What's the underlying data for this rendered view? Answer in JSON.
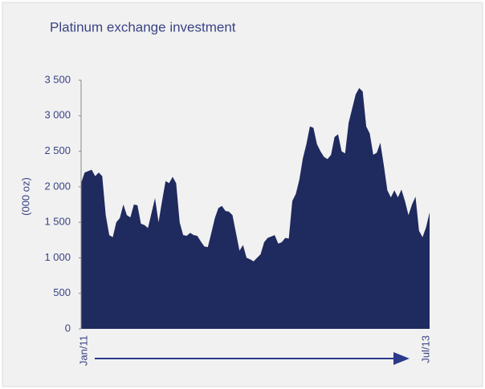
{
  "chart_data": {
    "type": "area",
    "title": "Platinum exchange investment",
    "ylabel": "(000 oz)",
    "color": "#1f2a5e",
    "categories": [
      "Jan/11",
      null,
      null,
      null,
      null,
      null,
      null,
      null,
      null,
      null,
      null,
      null,
      null,
      null,
      null,
      null,
      null,
      null,
      null,
      null,
      null,
      null,
      null,
      null,
      null,
      null,
      null,
      null,
      null,
      null,
      null,
      null,
      null,
      null,
      null,
      null,
      null,
      null,
      null,
      null,
      null,
      null,
      null,
      null,
      null,
      null,
      null,
      null,
      null,
      null,
      null,
      null,
      null,
      null,
      null,
      null,
      null,
      null,
      null,
      null,
      null,
      null,
      null,
      null,
      null,
      null,
      null,
      null,
      null,
      null,
      null,
      null,
      null,
      null,
      null,
      null,
      null,
      null,
      null,
      null,
      null,
      null,
      null,
      null,
      null,
      null,
      null,
      null,
      null,
      null,
      null,
      null,
      null,
      null,
      null,
      null,
      null,
      null,
      null,
      "Jul/13"
    ],
    "values": [
      2050,
      2200,
      2220,
      2240,
      2150,
      2200,
      2150,
      1600,
      1320,
      1290,
      1500,
      1560,
      1750,
      1600,
      1570,
      1750,
      1740,
      1480,
      1460,
      1420,
      1630,
      1840,
      1500,
      1800,
      2080,
      2050,
      2140,
      2050,
      1500,
      1320,
      1310,
      1350,
      1320,
      1310,
      1230,
      1160,
      1150,
      1350,
      1560,
      1700,
      1730,
      1660,
      1650,
      1600,
      1350,
      1100,
      1180,
      1000,
      980,
      950,
      1000,
      1050,
      1220,
      1280,
      1300,
      1320,
      1200,
      1220,
      1280,
      1270,
      1800,
      1900,
      2100,
      2400,
      2600,
      2850,
      2830,
      2600,
      2500,
      2420,
      2390,
      2450,
      2700,
      2740,
      2500,
      2470,
      2900,
      3100,
      3300,
      3390,
      3340,
      2850,
      2750,
      2450,
      2480,
      2620,
      2300,
      1950,
      1850,
      1950,
      1850,
      1960,
      1800,
      1600,
      1750,
      1860,
      1380,
      1290,
      1430,
      1640
    ],
    "ylim": [
      0,
      3500
    ],
    "yticks": [
      0,
      500,
      {
        "value": 1000,
        "label": "1 000"
      },
      {
        "value": 1500,
        "label": "1 500"
      },
      {
        "value": 2000,
        "label": "2 000"
      },
      {
        "value": 2500,
        "label": "2 500"
      },
      {
        "value": 3000,
        "label": "3 000"
      },
      {
        "value": 3500,
        "label": "3 500"
      }
    ]
  }
}
